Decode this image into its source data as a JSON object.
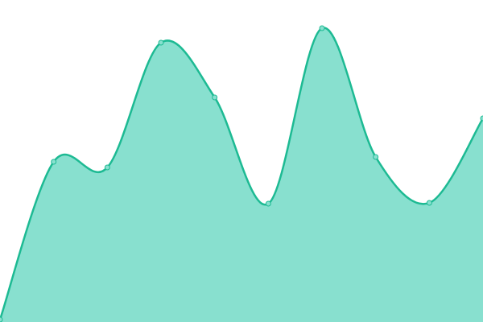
{
  "chart_data": {
    "type": "area",
    "x": [
      0,
      1,
      2,
      3,
      4,
      5,
      6,
      7,
      8,
      9
    ],
    "values": [
      3,
      199,
      192,
      347,
      279,
      147,
      365,
      205,
      148,
      253
    ],
    "xlim": [
      0,
      9
    ],
    "ylim": [
      0,
      400
    ],
    "color": "#1dba93",
    "fill_color": "#88e0cf",
    "smooth": true
  }
}
